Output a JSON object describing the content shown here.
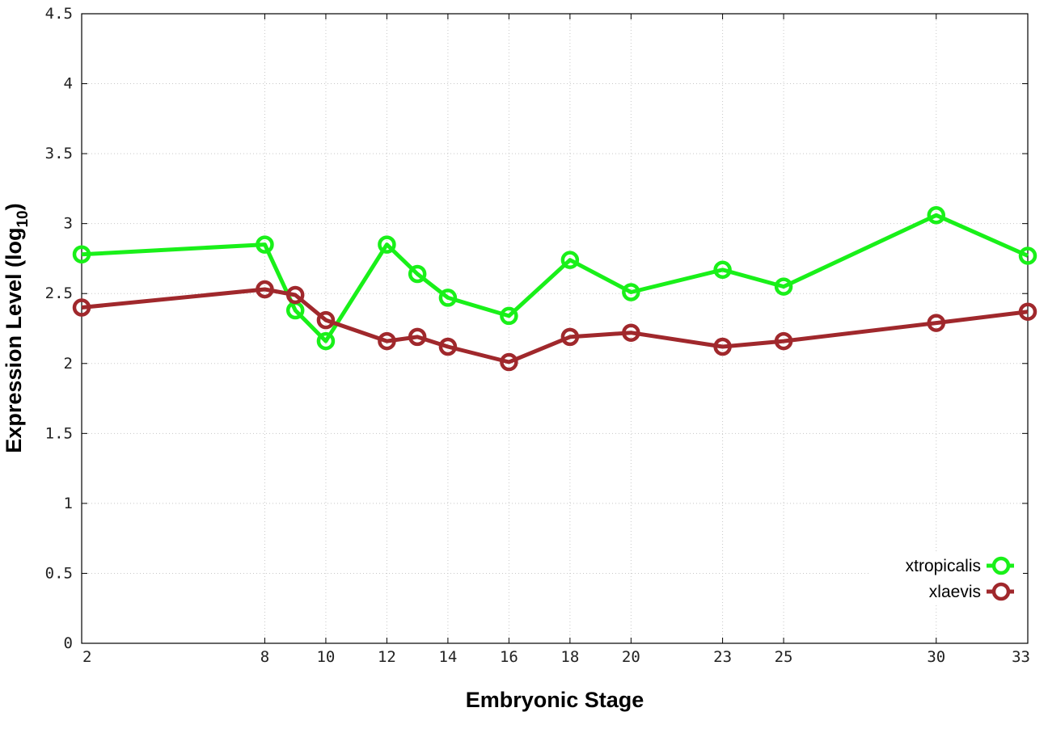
{
  "chart_data": {
    "type": "line",
    "xlabel": "Embryonic Stage",
    "ylabel_main": "Expression Level (log",
    "ylabel_sub": "10",
    "ylabel_end": ")",
    "xlim": [
      2,
      33
    ],
    "ylim": [
      0,
      4.5
    ],
    "x_ticks": [
      2,
      8,
      10,
      12,
      14,
      16,
      18,
      20,
      23,
      25,
      30,
      33
    ],
    "y_ticks": [
      0,
      0.5,
      1,
      1.5,
      2,
      2.5,
      3,
      3.5,
      4,
      4.5
    ],
    "x_tick_labels": [
      "2",
      "8",
      "10",
      "12",
      "14",
      "16",
      "18",
      "20",
      "23",
      "25",
      "30",
      "33"
    ],
    "y_tick_labels": [
      "0",
      "0.5",
      "1",
      "1.5",
      "2",
      "2.5",
      "3",
      "3.5",
      "4",
      "4.5"
    ],
    "grid": true,
    "legend_position": "bottom-right",
    "x": [
      2,
      8,
      9,
      10,
      12,
      13,
      14,
      16,
      18,
      20,
      23,
      25,
      30,
      33
    ],
    "series": [
      {
        "name": "xtropicalis",
        "color": "#19f019",
        "values": [
          2.78,
          2.85,
          2.38,
          2.16,
          2.85,
          2.64,
          2.47,
          2.34,
          2.74,
          2.51,
          2.67,
          2.55,
          3.06,
          2.77
        ]
      },
      {
        "name": "xlaevis",
        "color": "#a0282c",
        "values": [
          2.4,
          2.53,
          2.49,
          2.31,
          2.16,
          2.19,
          2.12,
          2.01,
          2.19,
          2.22,
          2.12,
          2.16,
          2.29,
          2.37
        ]
      }
    ]
  }
}
